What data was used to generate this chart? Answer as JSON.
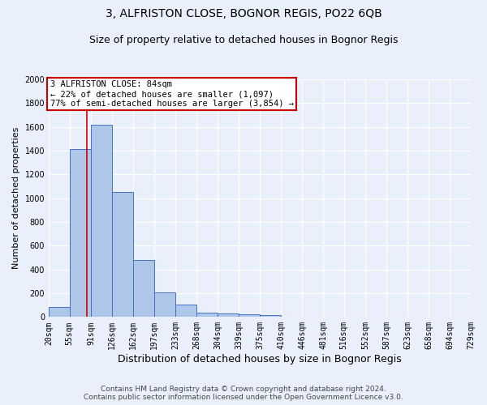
{
  "title": "3, ALFRISTON CLOSE, BOGNOR REGIS, PO22 6QB",
  "subtitle": "Size of property relative to detached houses in Bognor Regis",
  "xlabel": "Distribution of detached houses by size in Bognor Regis",
  "ylabel": "Number of detached properties",
  "bin_labels": [
    "20sqm",
    "55sqm",
    "91sqm",
    "126sqm",
    "162sqm",
    "197sqm",
    "233sqm",
    "268sqm",
    "304sqm",
    "339sqm",
    "375sqm",
    "410sqm",
    "446sqm",
    "481sqm",
    "516sqm",
    "552sqm",
    "587sqm",
    "623sqm",
    "658sqm",
    "694sqm",
    "729sqm"
  ],
  "bin_edges": [
    20,
    55,
    91,
    126,
    162,
    197,
    233,
    268,
    304,
    339,
    375,
    410,
    446,
    481,
    516,
    552,
    587,
    623,
    658,
    694,
    729
  ],
  "bar_heights": [
    85,
    1415,
    1620,
    1050,
    480,
    205,
    105,
    38,
    27,
    20,
    15,
    0,
    0,
    0,
    0,
    0,
    0,
    0,
    0,
    0
  ],
  "bar_color": "#aec6e8",
  "bar_edge_color": "#4472c4",
  "background_color": "#eaf0fb",
  "grid_color": "#ffffff",
  "vline_x": 84,
  "vline_color": "#cc0000",
  "annotation_line1": "3 ALFRISTON CLOSE: 84sqm",
  "annotation_line2": "← 22% of detached houses are smaller (1,097)",
  "annotation_line3": "77% of semi-detached houses are larger (3,854) →",
  "annotation_box_color": "#ffffff",
  "annotation_box_edge_color": "#cc0000",
  "ylim": [
    0,
    2000
  ],
  "yticks": [
    0,
    200,
    400,
    600,
    800,
    1000,
    1200,
    1400,
    1600,
    1800,
    2000
  ],
  "footer_text": "Contains HM Land Registry data © Crown copyright and database right 2024.\nContains public sector information licensed under the Open Government Licence v3.0.",
  "title_fontsize": 10,
  "subtitle_fontsize": 9,
  "xlabel_fontsize": 9,
  "ylabel_fontsize": 8,
  "tick_fontsize": 7,
  "annotation_fontsize": 7.5,
  "footer_fontsize": 6.5
}
